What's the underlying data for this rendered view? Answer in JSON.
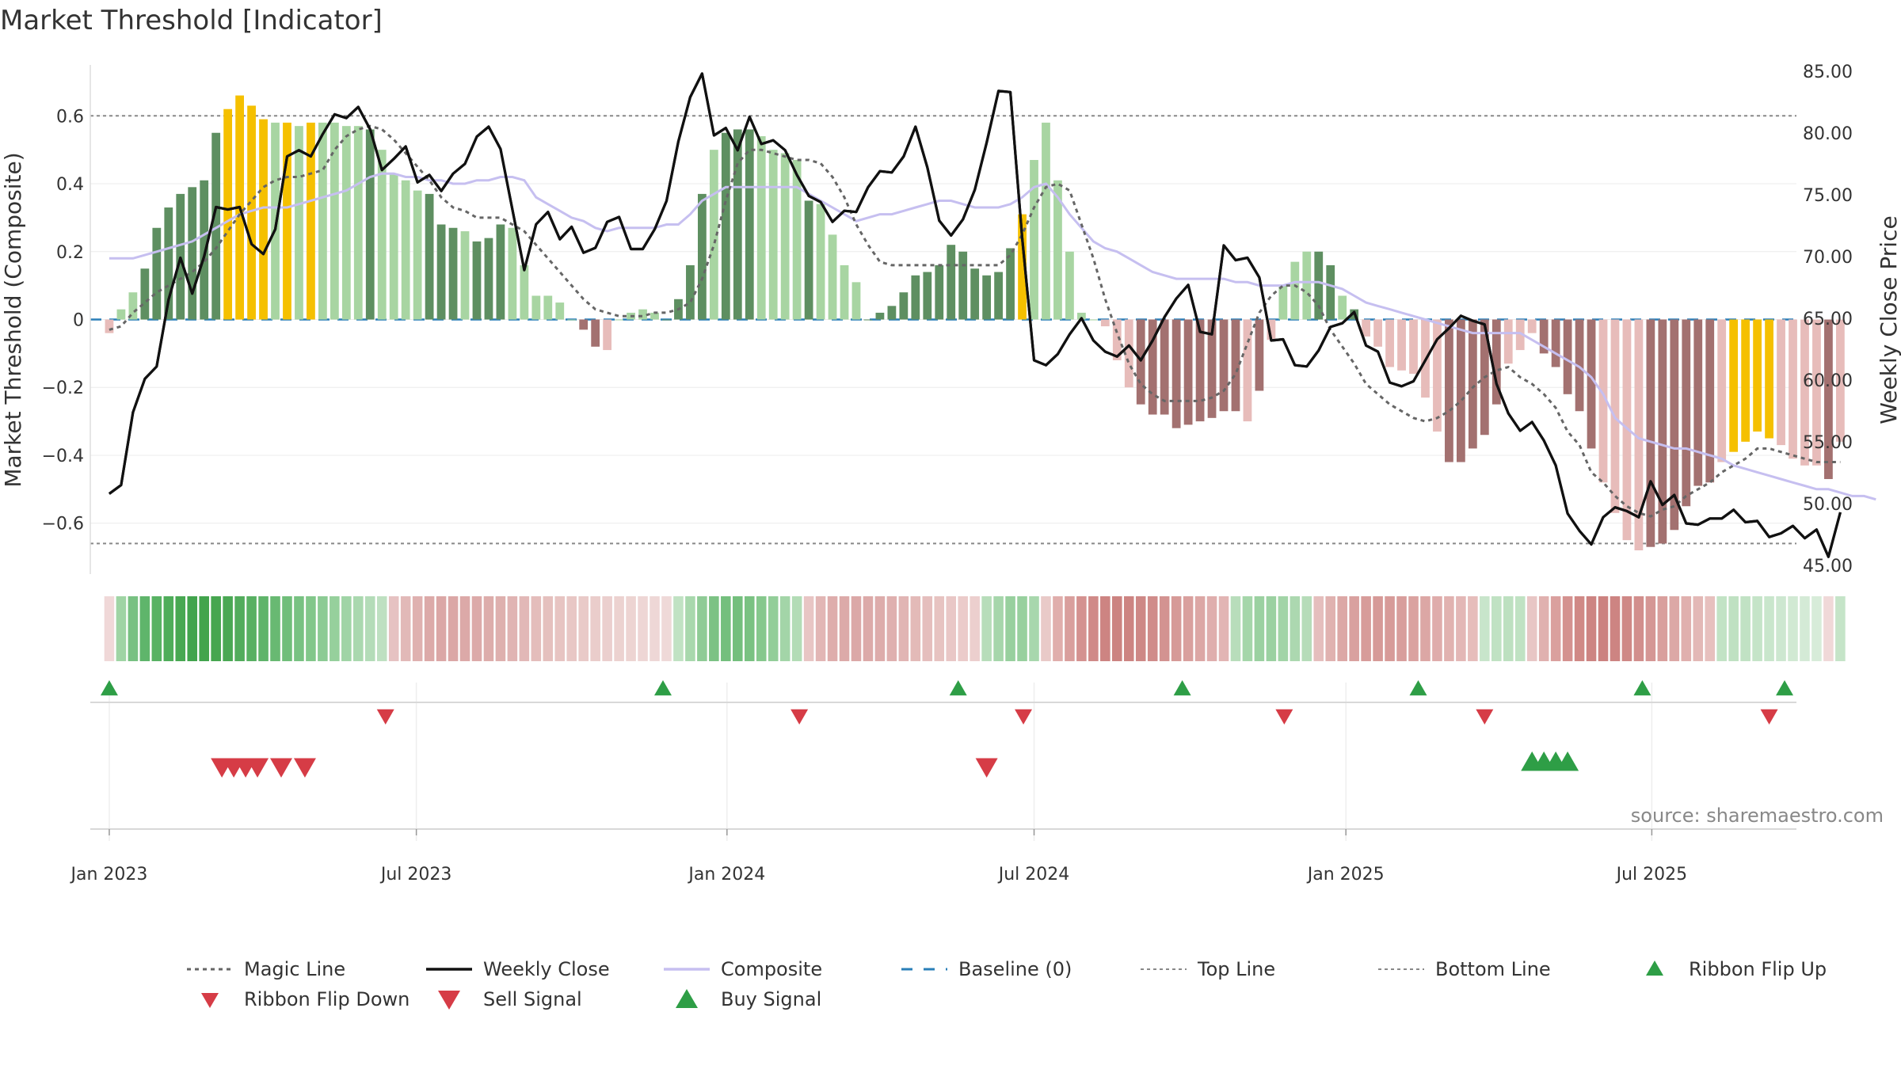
{
  "title": "Market Threshold [Indicator]",
  "source": "source: sharemaestro.com",
  "chart_data": {
    "type": "bar+line",
    "y_left": {
      "label": "Market Threshold (Composite)",
      "range": [
        -0.75,
        0.75
      ],
      "ticks": [
        0.6,
        0.4,
        0.2,
        0,
        -0.2,
        -0.4,
        -0.6
      ],
      "tick_labels": [
        "0.6",
        "0.4",
        "0.2",
        "0",
        "−0.2",
        "−0.4",
        "−0.6"
      ]
    },
    "y_right": {
      "label": "Weekly Close Price",
      "range": [
        44.3,
        85.5
      ],
      "ticks": [
        85,
        80,
        75,
        70,
        65,
        60,
        55,
        50,
        45
      ],
      "tick_labels": [
        "85.00",
        "80.00",
        "75.00",
        "70.00",
        "65.00",
        "60.00",
        "55.00",
        "50.00",
        "45.00"
      ]
    },
    "x_axis": {
      "week_range": [
        -1.6,
        142.3
      ],
      "ticks": [
        {
          "label": "Jan 2023",
          "week": 0
        },
        {
          "label": "Jul 2023",
          "week": 25.9
        },
        {
          "label": "Jan 2024",
          "week": 52.1
        },
        {
          "label": "Jul 2024",
          "week": 78
        },
        {
          "label": "Jan 2025",
          "week": 104.3
        },
        {
          "label": "Jul 2025",
          "week": 130.1
        }
      ]
    },
    "top_line": 0.6,
    "bottom_line": -0.66,
    "baseline": 0,
    "bars": [
      -0.04,
      0.03,
      0.08,
      0.15,
      0.27,
      0.33,
      0.37,
      0.39,
      0.41,
      0.55,
      0.62,
      0.66,
      0.63,
      0.59,
      0.58,
      0.58,
      0.57,
      0.58,
      0.58,
      0.58,
      0.57,
      0.57,
      0.56,
      0.5,
      0.43,
      0.41,
      0.38,
      0.37,
      0.28,
      0.27,
      0.26,
      0.23,
      0.24,
      0.28,
      0.27,
      0.16,
      0.07,
      0.07,
      0.05,
      0,
      -0.03,
      -0.08,
      -0.09,
      0,
      0.02,
      0.03,
      0.02,
      0,
      0.06,
      0.16,
      0.37,
      0.5,
      0.55,
      0.56,
      0.56,
      0.54,
      0.5,
      0.49,
      0.47,
      0.35,
      0.34,
      0.25,
      0.16,
      0.11,
      0,
      0.02,
      0.04,
      0.08,
      0.13,
      0.14,
      0.16,
      0.22,
      0.2,
      0.15,
      0.13,
      0.14,
      0.21,
      0.31,
      0.47,
      0.58,
      0.41,
      0.2,
      0.02,
      0,
      -0.02,
      -0.12,
      -0.2,
      -0.25,
      -0.28,
      -0.28,
      -0.32,
      -0.31,
      -0.3,
      -0.29,
      -0.27,
      -0.27,
      -0.3,
      -0.21,
      -0.06,
      0.1,
      0.17,
      0.2,
      0.2,
      0.16,
      0.07,
      0.03,
      -0.05,
      -0.08,
      -0.14,
      -0.15,
      -0.16,
      -0.23,
      -0.33,
      -0.42,
      -0.42,
      -0.38,
      -0.34,
      -0.25,
      -0.13,
      -0.09,
      -0.04,
      -0.1,
      -0.14,
      -0.22,
      -0.27,
      -0.38,
      -0.48,
      -0.57,
      -0.65,
      -0.68,
      -0.67,
      -0.66,
      -0.62,
      -0.55,
      -0.49,
      -0.48,
      -0.42,
      -0.39,
      -0.36,
      -0.33,
      -0.35,
      -0.37,
      -0.41,
      -0.43,
      -0.43,
      -0.47,
      -0.36
    ],
    "bar_states": "-xxhhhhhhhYYYYxYxYxxxxhxxxxhhhxhhhxxxxxrrrxxxxxhhhhxhhhxxxxhxxxxhhhhhhhhhhhhhYxxxxxxxxxrrrrrrrrrxrxrxxhhxhxxxxxxxrrrrrxxxrrrrrxxxxrrrrrrxYYYYxxxxrxrrxrrxrrrrr",
    "weekly_close": [
      50.8,
      51.5,
      57.4,
      60.1,
      61.1,
      66.5,
      69.9,
      67,
      70,
      74,
      73.8,
      74,
      71,
      70.2,
      72.2,
      78.1,
      78.6,
      78.1,
      79.9,
      81.5,
      81.2,
      82.1,
      80.3,
      77,
      77.9,
      78.9,
      76,
      76.6,
      75.3,
      76.7,
      77.5,
      79.7,
      80.5,
      78.7,
      73.8,
      68.9,
      72.6,
      73.6,
      71.4,
      72.4,
      70.3,
      70.7,
      72.8,
      73.2,
      70.6,
      70.6,
      72.2,
      74.5,
      79.3,
      82.9,
      84.8,
      79.8,
      80.4,
      78.6,
      81.3,
      79.1,
      79.4,
      78.6,
      76.6,
      74.9,
      74.4,
      72.8,
      73.7,
      73.6,
      75.6,
      76.9,
      76.8,
      78.1,
      80.5,
      77.2,
      72.9,
      71.7,
      73,
      75.4,
      79.2,
      83.4,
      83.3,
      71.5,
      61.6,
      61.2,
      62.1,
      63.7,
      65,
      63.2,
      62.3,
      61.9,
      62.8,
      61.6,
      63.2,
      65.1,
      66.6,
      67.7,
      63.9,
      63.7,
      70.9,
      69.7,
      69.9,
      68.3,
      63.2,
      63.3,
      61.2,
      61.1,
      62.4,
      64.3,
      64.6,
      65.5,
      62.8,
      62.3,
      59.8,
      59.5,
      59.9,
      61.6,
      63.3,
      64.2,
      65.2,
      64.8,
      64.5,
      59.7,
      57.3,
      55.9,
      56.6,
      55.1,
      53.1,
      49.2,
      47.8,
      46.7,
      48.9,
      49.7,
      49.4,
      48.9,
      51.8,
      49.9,
      50.7,
      48.4,
      48.3,
      48.8,
      48.8,
      49.5,
      48.5,
      48.6,
      47.3,
      47.6,
      48.2,
      47.2,
      47.9,
      45.7,
      49.3
    ],
    "composite": [
      0.18,
      0.18,
      0.18,
      0.19,
      0.2,
      0.21,
      0.22,
      0.23,
      0.25,
      0.27,
      0.29,
      0.31,
      0.32,
      0.33,
      0.33,
      0.33,
      0.34,
      0.35,
      0.36,
      0.37,
      0.38,
      0.4,
      0.42,
      0.43,
      0.43,
      0.42,
      0.42,
      0.41,
      0.41,
      0.4,
      0.4,
      0.41,
      0.41,
      0.42,
      0.42,
      0.41,
      0.36,
      0.34,
      0.32,
      0.3,
      0.29,
      0.27,
      0.26,
      0.27,
      0.27,
      0.27,
      0.27,
      0.28,
      0.28,
      0.31,
      0.35,
      0.37,
      0.39,
      0.39,
      0.39,
      0.39,
      0.39,
      0.39,
      0.39,
      0.37,
      0.35,
      0.33,
      0.31,
      0.29,
      0.3,
      0.31,
      0.31,
      0.32,
      0.33,
      0.34,
      0.35,
      0.35,
      0.34,
      0.33,
      0.33,
      0.33,
      0.34,
      0.36,
      0.39,
      0.4,
      0.36,
      0.31,
      0.27,
      0.23,
      0.21,
      0.2,
      0.18,
      0.16,
      0.14,
      0.13,
      0.12,
      0.12,
      0.12,
      0.12,
      0.12,
      0.11,
      0.11,
      0.1,
      0.1,
      0.1,
      0.11,
      0.11,
      0.11,
      0.1,
      0.09,
      0.07,
      0.05,
      0.04,
      0.03,
      0.02,
      0.01,
      0,
      -0.01,
      -0.02,
      -0.03,
      -0.04,
      -0.04,
      -0.04,
      -0.04,
      -0.04,
      -0.06,
      -0.08,
      -0.1,
      -0.12,
      -0.14,
      -0.17,
      -0.22,
      -0.29,
      -0.32,
      -0.35,
      -0.36,
      -0.37,
      -0.38,
      -0.38,
      -0.39,
      -0.4,
      -0.41,
      -0.43,
      -0.44,
      -0.45,
      -0.46,
      -0.47,
      -0.48,
      -0.49,
      -0.5,
      -0.5,
      -0.51,
      -0.52,
      -0.52,
      -0.53
    ],
    "magic_line": [
      -0.03,
      -0.02,
      0.02,
      0.05,
      0.08,
      0.1,
      0.12,
      0.14,
      0.17,
      0.21,
      0.26,
      0.31,
      0.35,
      0.39,
      0.41,
      0.42,
      0.42,
      0.43,
      0.44,
      0.5,
      0.54,
      0.56,
      0.57,
      0.56,
      0.53,
      0.49,
      0.45,
      0.41,
      0.36,
      0.33,
      0.32,
      0.3,
      0.3,
      0.3,
      0.28,
      0.26,
      0.22,
      0.18,
      0.14,
      0.1,
      0.06,
      0.03,
      0.02,
      0.01,
      0.01,
      0.01,
      0.02,
      0.02,
      0.03,
      0.05,
      0.12,
      0.22,
      0.35,
      0.46,
      0.5,
      0.5,
      0.49,
      0.48,
      0.47,
      0.47,
      0.46,
      0.42,
      0.36,
      0.28,
      0.22,
      0.17,
      0.16,
      0.16,
      0.16,
      0.16,
      0.16,
      0.16,
      0.16,
      0.16,
      0.16,
      0.16,
      0.19,
      0.25,
      0.33,
      0.39,
      0.4,
      0.38,
      0.28,
      0.18,
      0.06,
      -0.04,
      -0.13,
      -0.19,
      -0.22,
      -0.24,
      -0.24,
      -0.24,
      -0.24,
      -0.23,
      -0.21,
      -0.16,
      -0.07,
      0.02,
      0.07,
      0.1,
      0.1,
      0.08,
      0.04,
      -0.03,
      -0.08,
      -0.13,
      -0.19,
      -0.22,
      -0.25,
      -0.27,
      -0.29,
      -0.3,
      -0.29,
      -0.27,
      -0.24,
      -0.2,
      -0.17,
      -0.15,
      -0.14,
      -0.17,
      -0.19,
      -0.22,
      -0.26,
      -0.33,
      -0.37,
      -0.45,
      -0.48,
      -0.52,
      -0.55,
      -0.57,
      -0.58,
      -0.56,
      -0.55,
      -0.52,
      -0.5,
      -0.48,
      -0.45,
      -0.43,
      -0.41,
      -0.38,
      -0.38,
      -0.39,
      -0.4,
      -0.41,
      -0.42,
      -0.42,
      -0.42
    ],
    "ribbon": [
      "#f0d8d8",
      "#9fd4a4",
      "#78c182",
      "#5fb56b",
      "#58b263",
      "#4fad5a",
      "#48a852",
      "#42a44d",
      "#42a44d",
      "#46a650",
      "#4aa854",
      "#52ac5c",
      "#58b062",
      "#5fb46a",
      "#68b972",
      "#70be7a",
      "#78c282",
      "#82c78a",
      "#8ccb94",
      "#96d09c",
      "#a0d4a6",
      "#aad8af",
      "#b4dcb8",
      "#bee0c1",
      "#e6c2c2",
      "#e2b9b8",
      "#dfb1b0",
      "#dcaaa9",
      "#dba7a6",
      "#dba7a6",
      "#dca9a8",
      "#dcaaa9",
      "#ddadab",
      "#deb0ae",
      "#e0b4b3",
      "#e2b8b7",
      "#e4bdbb",
      "#e5c0be",
      "#e7c4c2",
      "#e8c7c5",
      "#e9cac8",
      "#eacdcb",
      "#ebcfce",
      "#ecd2d0",
      "#edd4d2",
      "#eed6d5",
      "#eed7d6",
      "#efd9d8",
      "#c0e2c3",
      "#a8d8ad",
      "#8fcb96",
      "#7cc284",
      "#74bf7d",
      "#74bf7d",
      "#7ac282",
      "#86c88d",
      "#93ce99",
      "#a3d5a8",
      "#b3dcb6",
      "#e8c5c4",
      "#e2b6b5",
      "#deadac",
      "#dcaaa9",
      "#dba8a7",
      "#dcaaa9",
      "#ddacab",
      "#dfb0af",
      "#e1b5b4",
      "#e3bab8",
      "#e5bebd",
      "#e7c3c1",
      "#e9c7c6",
      "#ebcbca",
      "#eccfce",
      "#b7ddba",
      "#a6d6ab",
      "#98d09e",
      "#98d09e",
      "#a8d7ad",
      "#e9cac8",
      "#e0aeac",
      "#d99f9d",
      "#d49290",
      "#d08a88",
      "#cd8482",
      "#cc8381",
      "#cd8482",
      "#ce8886",
      "#d08c8a",
      "#d39391",
      "#d69a98",
      "#d9a09e",
      "#dca7a5",
      "#dfaead",
      "#e2b5b4",
      "#b8ddbb",
      "#a5d6aa",
      "#9bd1a1",
      "#9bd1a1",
      "#a2d4a7",
      "#acd8b0",
      "#b6dcb9",
      "#e5bebd",
      "#e0b2b0",
      "#dca8a6",
      "#d9a19f",
      "#d79c9a",
      "#d69a98",
      "#d79b99",
      "#d89e9c",
      "#daa2a0",
      "#dca7a5",
      "#dfacab",
      "#e1b2b0",
      "#e3b7b6",
      "#e6bdbb",
      "#c8e5cb",
      "#c0e2c3",
      "#bde0c0",
      "#c0e2c3",
      "#e8c6c5",
      "#e0b1af",
      "#daa09e",
      "#d49290",
      "#d08986",
      "#cd8482",
      "#cc8280",
      "#cd8482",
      "#cf8886",
      "#d28f8d",
      "#d59795",
      "#d99f9d",
      "#dca8a6",
      "#e0b0ae",
      "#e3b8b6",
      "#e7c0be",
      "#c2e3c5",
      "#bfe1c2",
      "#c1e2c4",
      "#c5e4c8",
      "#c9e6cc",
      "#cde7d0",
      "#d1e9d3",
      "#d4ead6",
      "#d7ecd9",
      "#f0d8d8",
      "#c5e4c8"
    ],
    "buy_markers_row1": [
      0,
      46.7,
      71.6,
      90.5,
      110.4,
      129.3,
      141.3
    ],
    "sell_markers_row1": [
      23.3,
      58.2,
      77.1,
      99.1,
      116,
      140
    ],
    "sell_signals": [
      9.5,
      10.5,
      11.5,
      12.5,
      14.5,
      16.5,
      74
    ],
    "buy_signals": [
      120,
      121,
      122,
      123
    ],
    "legend": [
      {
        "label": "Magic Line",
        "type": "dotted"
      },
      {
        "label": "Weekly Close",
        "type": "solid"
      },
      {
        "label": "Composite",
        "type": "lavender"
      },
      {
        "label": "Baseline (0)",
        "type": "dashed"
      },
      {
        "label": "Top Line",
        "type": "dotted-light"
      },
      {
        "label": "Bottom Line",
        "type": "dotted-light"
      },
      {
        "label": "Ribbon Flip Up",
        "type": "tri-up-small"
      },
      {
        "label": "Ribbon Flip Down",
        "type": "tri-down-small"
      },
      {
        "label": "Sell Signal",
        "type": "tri-down-big"
      },
      {
        "label": "Buy Signal",
        "type": "tri-up-big"
      }
    ]
  },
  "colors": {
    "dark_green": "#5e8f61",
    "light_green": "#a8d5a2",
    "yellow": "#f5c000",
    "dark_red": "#a37170",
    "light_red": "#e7bcba",
    "magic_line": "#666666",
    "weekly_close": "#111111",
    "composite": "#c6bff0",
    "baseline": "#2a7fb8",
    "ref_line": "#888888",
    "buy_green": "#2e9e46",
    "sell_red": "#d63c46"
  }
}
